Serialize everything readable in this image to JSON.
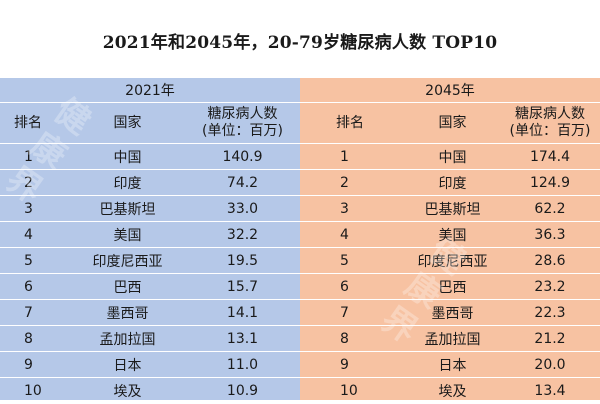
{
  "title": "2021年和2045年，20-79岁糖尿病人数 TOP10",
  "tables": [
    {
      "year": "2021年",
      "headers": {
        "rank": "排名",
        "country": "国家",
        "value_line1": "糖尿病人数",
        "value_line2": "(单位：百万)"
      },
      "rows": [
        {
          "rank": "1",
          "country": "中国",
          "value": "140.9"
        },
        {
          "rank": "2",
          "country": "印度",
          "value": "74.2"
        },
        {
          "rank": "3",
          "country": "巴基斯坦",
          "value": "33.0"
        },
        {
          "rank": "4",
          "country": "美国",
          "value": "32.2"
        },
        {
          "rank": "5",
          "country": "印度尼西亚",
          "value": "19.5"
        },
        {
          "rank": "6",
          "country": "巴西",
          "value": "15.7"
        },
        {
          "rank": "7",
          "country": "墨西哥",
          "value": "14.1"
        },
        {
          "rank": "8",
          "country": "孟加拉国",
          "value": "13.1"
        },
        {
          "rank": "9",
          "country": "日本",
          "value": "11.0"
        },
        {
          "rank": "10",
          "country": "埃及",
          "value": "10.9"
        }
      ]
    },
    {
      "year": "2045年",
      "headers": {
        "rank": "排名",
        "country": "国家",
        "value_line1": "糖尿病人数",
        "value_line2": "(单位：百万)"
      },
      "rows": [
        {
          "rank": "1",
          "country": "中国",
          "value": "174.4"
        },
        {
          "rank": "2",
          "country": "印度",
          "value": "124.9"
        },
        {
          "rank": "3",
          "country": "巴基斯坦",
          "value": "62.2"
        },
        {
          "rank": "4",
          "country": "美国",
          "value": "36.3"
        },
        {
          "rank": "5",
          "country": "印度尼西亚",
          "value": "28.6"
        },
        {
          "rank": "6",
          "country": "巴西",
          "value": "23.2"
        },
        {
          "rank": "7",
          "country": "墨西哥",
          "value": "22.3"
        },
        {
          "rank": "8",
          "country": "孟加拉国",
          "value": "21.2"
        },
        {
          "rank": "9",
          "country": "日本",
          "value": "20.0"
        },
        {
          "rank": "10",
          "country": "埃及",
          "value": "13.4"
        }
      ]
    }
  ],
  "watermark": "健康界",
  "colors": {
    "left_panel": "#b5c8e8",
    "right_panel": "#f7c2a2"
  }
}
